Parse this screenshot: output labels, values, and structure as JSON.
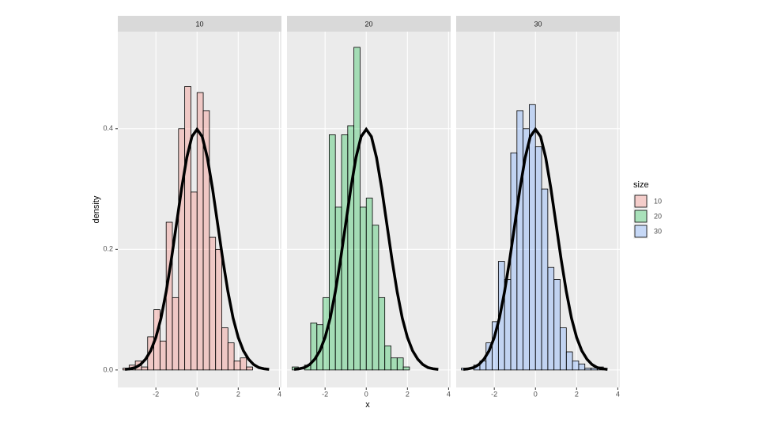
{
  "chart_data": {
    "type": "histogram",
    "xlabel": "x",
    "ylabel": "density",
    "legend_title": "size",
    "xlim": [
      -3.85,
      4.1
    ],
    "xticks": [
      -2,
      0,
      2,
      4
    ],
    "ylim": [
      -0.029,
      0.561
    ],
    "yticks": [
      {
        "value": 0,
        "label": "0.0"
      },
      0.2,
      0.4
    ],
    "grid": true,
    "legend_position": "right",
    "bins": [
      -3.6,
      -3.3,
      -3.0,
      -2.7,
      -2.4,
      -2.1,
      -1.8,
      -1.5,
      -1.2,
      -0.9,
      -0.6,
      -0.3,
      0.0,
      0.3,
      0.6,
      0.9,
      1.2,
      1.5,
      1.8,
      2.1,
      2.4,
      2.7,
      3.0,
      3.3,
      3.6
    ],
    "series": [
      {
        "name": "10",
        "color": "#F8766D",
        "values": [
          0.003,
          0.008,
          0.015,
          0.005,
          0.055,
          0.1,
          0.048,
          0.245,
          0.12,
          0.4,
          0.47,
          0.295,
          0.46,
          0.43,
          0.22,
          0.2,
          0.07,
          0.045,
          0.015,
          0.02,
          0.005,
          0,
          0,
          0
        ]
      },
      {
        "name": "20",
        "color": "#00BA38",
        "values": [
          0.005,
          0,
          0.008,
          0.078,
          0.075,
          0.12,
          0.39,
          0.27,
          0.39,
          0.405,
          0.535,
          0.27,
          0.285,
          0.24,
          0.12,
          0.04,
          0.02,
          0.02,
          0.005,
          0,
          0,
          0,
          0,
          0
        ]
      },
      {
        "name": "30",
        "color": "#619CFF",
        "values": [
          0.003,
          0,
          0.008,
          0.015,
          0.045,
          0.08,
          0.18,
          0.15,
          0.36,
          0.43,
          0.4,
          0.44,
          0.37,
          0.3,
          0.17,
          0.15,
          0.07,
          0.03,
          0.015,
          0.01,
          0.003,
          0.003,
          0.005,
          0
        ]
      }
    ],
    "curve": {
      "x": [
        -3.5,
        -3.25,
        -3,
        -2.75,
        -2.5,
        -2.25,
        -2,
        -1.75,
        -1.5,
        -1.25,
        -1,
        -0.75,
        -0.5,
        -0.25,
        0,
        0.25,
        0.5,
        0.75,
        1,
        1.25,
        1.5,
        1.75,
        2,
        2.25,
        2.5,
        2.75,
        3,
        3.25,
        3.5
      ],
      "y": [
        0.001,
        0.002,
        0.004,
        0.009,
        0.018,
        0.032,
        0.054,
        0.086,
        0.13,
        0.183,
        0.242,
        0.301,
        0.352,
        0.387,
        0.399,
        0.387,
        0.352,
        0.301,
        0.242,
        0.183,
        0.13,
        0.086,
        0.054,
        0.032,
        0.018,
        0.009,
        0.004,
        0.002,
        0.001
      ]
    }
  }
}
